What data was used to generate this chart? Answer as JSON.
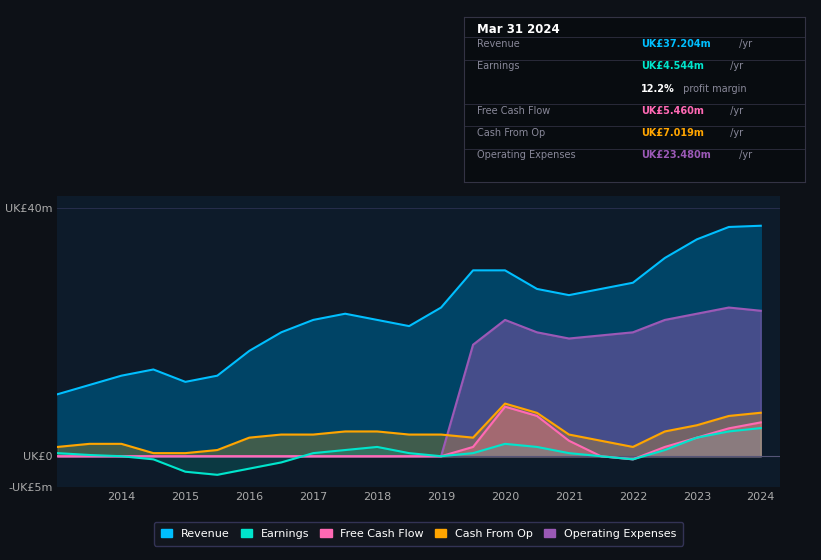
{
  "background_color": "#0d1117",
  "plot_bg_color": "#0d1b2a",
  "years": [
    2013,
    2013.5,
    2014,
    2014.5,
    2015,
    2015.5,
    2016,
    2016.5,
    2017,
    2017.5,
    2018,
    2018.5,
    2019,
    2019.5,
    2020,
    2020.5,
    2021,
    2021.5,
    2022,
    2022.5,
    2023,
    2023.5,
    2024
  ],
  "revenue": [
    10,
    11.5,
    13,
    14,
    12,
    13,
    17,
    20,
    22,
    23,
    22,
    21,
    24,
    30,
    30,
    27,
    26,
    27,
    28,
    32,
    35,
    37,
    37.2
  ],
  "earnings": [
    0.5,
    0.2,
    0,
    -0.5,
    -2.5,
    -3,
    -2,
    -1,
    0.5,
    1,
    1.5,
    0.5,
    0,
    0.5,
    2,
    1.5,
    0.5,
    0,
    -0.5,
    1,
    3,
    4,
    4.544
  ],
  "free_cash": [
    0,
    0,
    0,
    0,
    0,
    0,
    0,
    0,
    0,
    0,
    0,
    0,
    0,
    1.5,
    8,
    6.5,
    2.5,
    0,
    -0.5,
    1.5,
    3,
    4.5,
    5.46
  ],
  "cash_from_op": [
    1.5,
    2,
    2,
    0.5,
    0.5,
    1,
    3,
    3.5,
    3.5,
    4,
    4,
    3.5,
    3.5,
    3,
    8.5,
    7,
    3.5,
    2.5,
    1.5,
    4,
    5,
    6.5,
    7.019
  ],
  "op_expenses": [
    0,
    0,
    0,
    0,
    0,
    0,
    0,
    0,
    0,
    0,
    0,
    0,
    0,
    18,
    22,
    20,
    19,
    19.5,
    20,
    22,
    23,
    24,
    23.48
  ],
  "revenue_color": "#00bfff",
  "earnings_color": "#00e5cc",
  "free_cash_color": "#ff69b4",
  "cash_from_op_color": "#ffa500",
  "op_expenses_color": "#9b59b6",
  "revenue_fill": "#004466",
  "op_expenses_fill": "#2d0a4e",
  "ylim": [
    -5,
    42
  ],
  "yticks": [
    -5,
    0,
    40
  ],
  "ytick_labels": [
    "-UK£5m",
    "UK£0",
    "UK£40m"
  ],
  "xticks": [
    2014,
    2015,
    2016,
    2017,
    2018,
    2019,
    2020,
    2021,
    2022,
    2023,
    2024
  ],
  "info_box": {
    "date": "Mar 31 2024",
    "revenue_label": "Revenue",
    "revenue_value": "UK£37.204m",
    "revenue_color": "#00bfff",
    "earnings_label": "Earnings",
    "earnings_value": "UK£4.544m",
    "earnings_color": "#00e5cc",
    "margin_pct": "12.2%",
    "margin_text": " profit margin",
    "free_cash_label": "Free Cash Flow",
    "free_cash_value": "UK£5.460m",
    "free_cash_color": "#ff69b4",
    "cash_op_label": "Cash From Op",
    "cash_op_value": "UK£7.019m",
    "cash_op_color": "#ffa500",
    "op_exp_label": "Operating Expenses",
    "op_exp_value": "UK£23.480m",
    "op_exp_color": "#9b59b6"
  },
  "legend_items": [
    {
      "label": "Revenue",
      "color": "#00bfff"
    },
    {
      "label": "Earnings",
      "color": "#00e5cc"
    },
    {
      "label": "Free Cash Flow",
      "color": "#ff69b4"
    },
    {
      "label": "Cash From Op",
      "color": "#ffa500"
    },
    {
      "label": "Operating Expenses",
      "color": "#9b59b6"
    }
  ]
}
